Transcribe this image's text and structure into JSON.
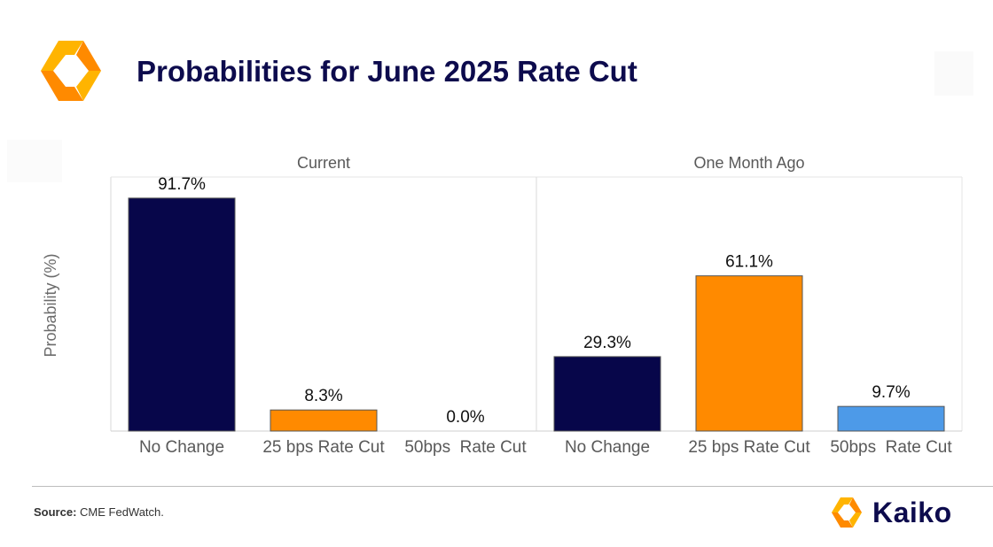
{
  "header": {
    "title": "Probabilities for June 2025 Rate Cut"
  },
  "colors": {
    "navy": "#07064a",
    "orange": "#ff8a00",
    "blue": "#4d9ae8",
    "logo_orange": "#ff9900",
    "logo_yellow": "#ffb400"
  },
  "footer": {
    "source_label": "Source:",
    "source_text": " CME FedWatch."
  },
  "brand": {
    "name": "Kaiko"
  },
  "chart_data": [
    {
      "type": "bar",
      "title": "Current",
      "ylabel": "Probability (%)",
      "ylim": [
        0,
        100
      ],
      "categories": [
        "No Change",
        "25 bps Rate Cut",
        "50bps  Rate Cut"
      ],
      "values": [
        91.7,
        8.3,
        0.0
      ],
      "labels": [
        "91.7%",
        "8.3%",
        "0.0%"
      ],
      "colors": [
        "#07064a",
        "#ff8a00",
        "#4d9ae8"
      ]
    },
    {
      "type": "bar",
      "title": "One Month Ago",
      "ylabel": "Probability (%)",
      "ylim": [
        0,
        100
      ],
      "categories": [
        "No Change",
        "25 bps Rate Cut",
        "50bps  Rate Cut"
      ],
      "values": [
        29.3,
        61.1,
        9.7
      ],
      "labels": [
        "29.3%",
        "61.1%",
        "9.7%"
      ],
      "colors": [
        "#07064a",
        "#ff8a00",
        "#4d9ae8"
      ]
    }
  ]
}
